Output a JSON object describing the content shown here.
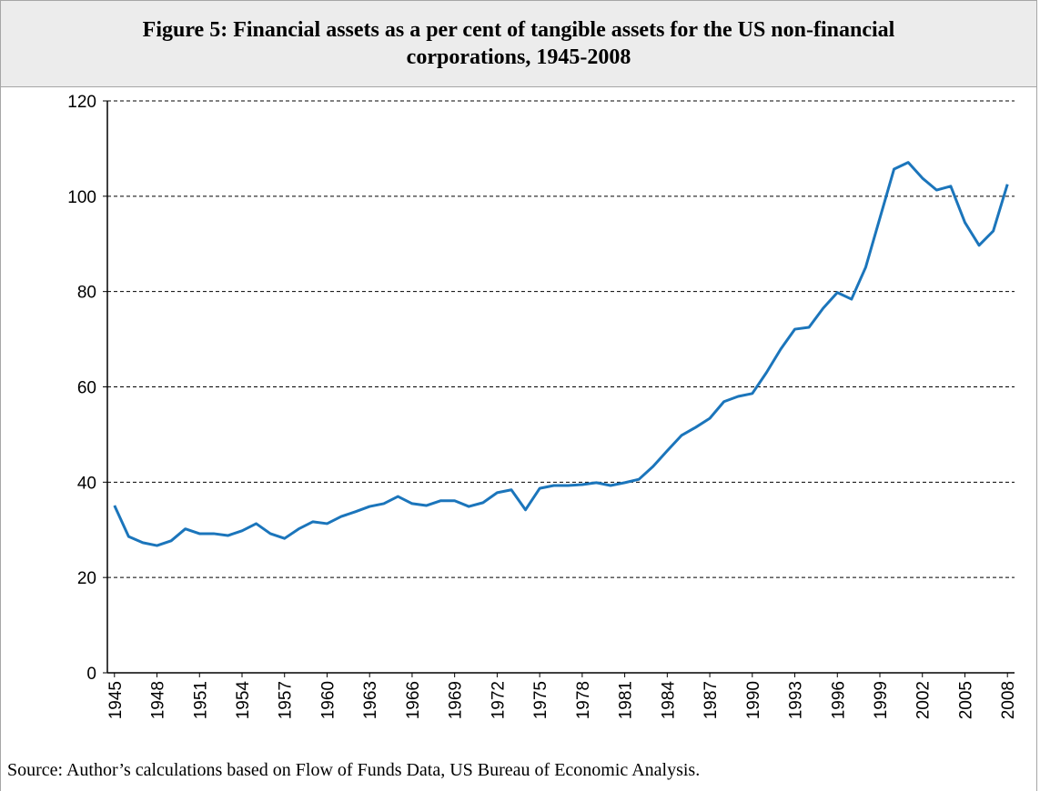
{
  "chart_data": {
    "type": "line",
    "title": "Figure 5: Financial assets as a per cent of tangible assets for the US non-financial corporations, 1945-2008",
    "source": "Source: Author’s calculations based on Flow of Funds Data, US Bureau of Economic Analysis.",
    "x": [
      1945,
      1946,
      1947,
      1948,
      1949,
      1950,
      1951,
      1952,
      1953,
      1954,
      1955,
      1956,
      1957,
      1958,
      1959,
      1960,
      1961,
      1962,
      1963,
      1964,
      1965,
      1966,
      1967,
      1968,
      1969,
      1970,
      1971,
      1972,
      1973,
      1974,
      1975,
      1976,
      1977,
      1978,
      1979,
      1980,
      1981,
      1982,
      1983,
      1984,
      1985,
      1986,
      1987,
      1988,
      1989,
      1990,
      1991,
      1992,
      1993,
      1994,
      1995,
      1996,
      1997,
      1998,
      1999,
      2000,
      2001,
      2002,
      2003,
      2004,
      2005,
      2006,
      2007,
      2008
    ],
    "series": [
      {
        "color": "#1b75bb",
        "values": [
          35.1,
          28.6,
          27.3,
          26.7,
          27.7,
          30.2,
          29.2,
          29.2,
          28.8,
          29.8,
          31.3,
          29.2,
          28.2,
          30.2,
          31.7,
          31.3,
          32.8,
          33.8,
          34.9,
          35.5,
          37.0,
          35.5,
          35.1,
          36.1,
          36.1,
          34.9,
          35.7,
          37.8,
          38.4,
          34.2,
          38.7,
          39.3,
          39.3,
          39.5,
          39.9,
          39.3,
          39.9,
          40.6,
          43.3,
          46.6,
          49.8,
          51.5,
          53.4,
          56.9,
          58.0,
          58.6,
          63.0,
          67.9,
          72.1,
          72.5,
          76.5,
          79.8,
          78.4,
          85.1,
          95.4,
          105.7,
          107.1,
          103.8,
          101.3,
          102.1,
          94.5,
          89.7,
          92.7,
          102.5
        ]
      }
    ],
    "xlim": [
      1944.5,
      2008.5
    ],
    "xticks": [
      1945,
      1948,
      1951,
      1954,
      1957,
      1960,
      1963,
      1966,
      1969,
      1972,
      1975,
      1978,
      1981,
      1984,
      1987,
      1990,
      1993,
      1996,
      1999,
      2002,
      2005,
      2008
    ],
    "ylim": [
      0,
      120
    ],
    "yticks": [
      0,
      20,
      40,
      60,
      80,
      100,
      120
    ],
    "grid": true
  }
}
